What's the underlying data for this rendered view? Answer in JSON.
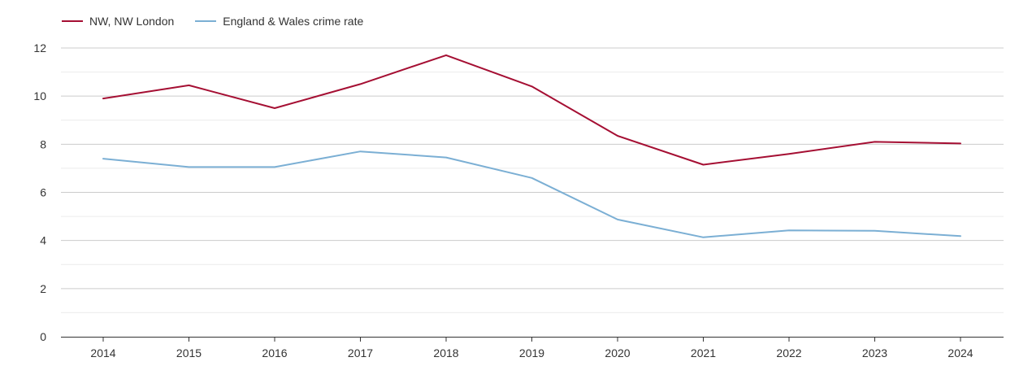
{
  "chart_data": {
    "type": "line",
    "title": "",
    "xlabel": "",
    "ylabel": "",
    "x": [
      "2014",
      "2015",
      "2016",
      "2017",
      "2018",
      "2019",
      "2020",
      "2021",
      "2022",
      "2023",
      "2024"
    ],
    "ylim": [
      0,
      12
    ],
    "yticks": [
      "0",
      "2",
      "4",
      "6",
      "8",
      "10",
      "12"
    ],
    "grid": true,
    "legend_position": "top-left",
    "series": [
      {
        "name": "NW, NW London",
        "color": "#a50f33",
        "values": [
          9.9,
          10.45,
          9.5,
          10.5,
          11.7,
          10.4,
          8.35,
          7.15,
          7.6,
          8.1,
          8.03
        ]
      },
      {
        "name": "England & Wales crime rate",
        "color": "#7bafd4",
        "values": [
          7.4,
          7.05,
          7.05,
          7.7,
          7.45,
          6.6,
          4.87,
          4.13,
          4.42,
          4.4,
          4.18
        ]
      }
    ]
  }
}
